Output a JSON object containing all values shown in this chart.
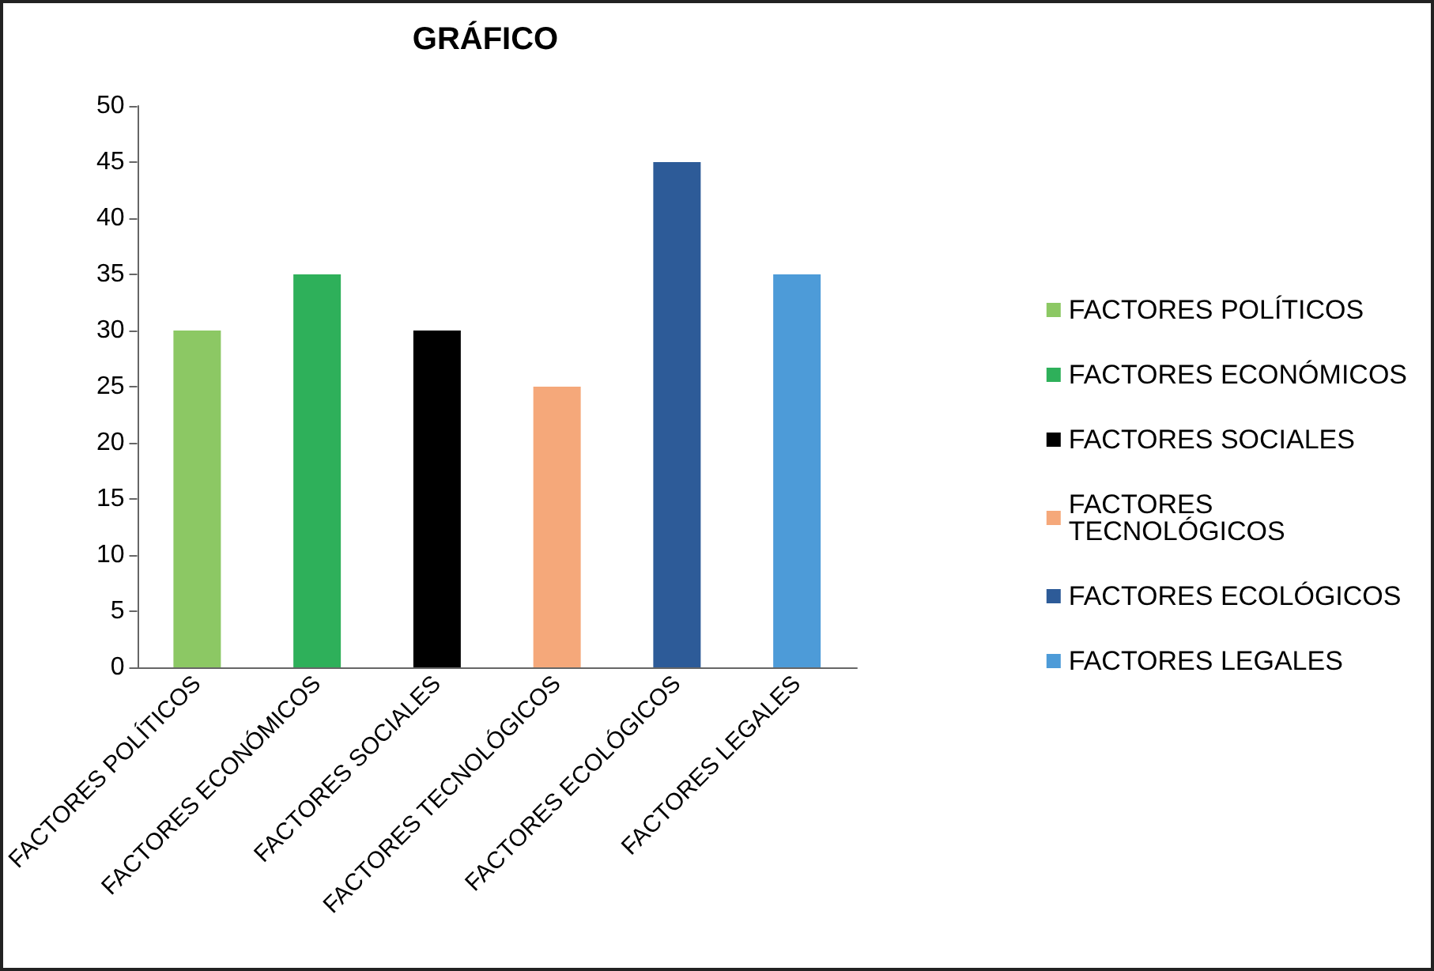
{
  "chart_data": {
    "type": "bar",
    "title": "GRÁFICO",
    "categories": [
      "FACTORES POLÍTICOS",
      "FACTORES ECONÓMICOS",
      "FACTORES SOCIALES",
      "FACTORES TECNOLÓGICOS",
      "FACTORES ECOLÓGICOS",
      "FACTORES LEGALES"
    ],
    "series": [
      {
        "name": "FACTORES POLÍTICOS",
        "color": "#8cc864",
        "values": [
          30,
          null,
          null,
          null,
          null,
          null
        ]
      },
      {
        "name": "FACTORES ECONÓMICOS",
        "color": "#2eb05a",
        "values": [
          null,
          35,
          null,
          null,
          null,
          null
        ]
      },
      {
        "name": "FACTORES SOCIALES",
        "color": "#000000",
        "values": [
          null,
          null,
          30,
          null,
          null,
          null
        ]
      },
      {
        "name": "FACTORES TECNOLÓGICOS",
        "color": "#f5a87a",
        "values": [
          null,
          null,
          null,
          25,
          null,
          null
        ]
      },
      {
        "name": "FACTORES ECOLÓGICOS",
        "color": "#2d5b98",
        "values": [
          null,
          null,
          null,
          null,
          45,
          null
        ]
      },
      {
        "name": "FACTORES LEGALES",
        "color": "#4d9bd8",
        "values": [
          null,
          null,
          null,
          null,
          null,
          35
        ]
      }
    ],
    "ylim": [
      0,
      50
    ],
    "yticks": [
      0,
      5,
      10,
      15,
      20,
      25,
      30,
      35,
      40,
      45,
      50
    ],
    "grid": false,
    "legend": "right"
  }
}
